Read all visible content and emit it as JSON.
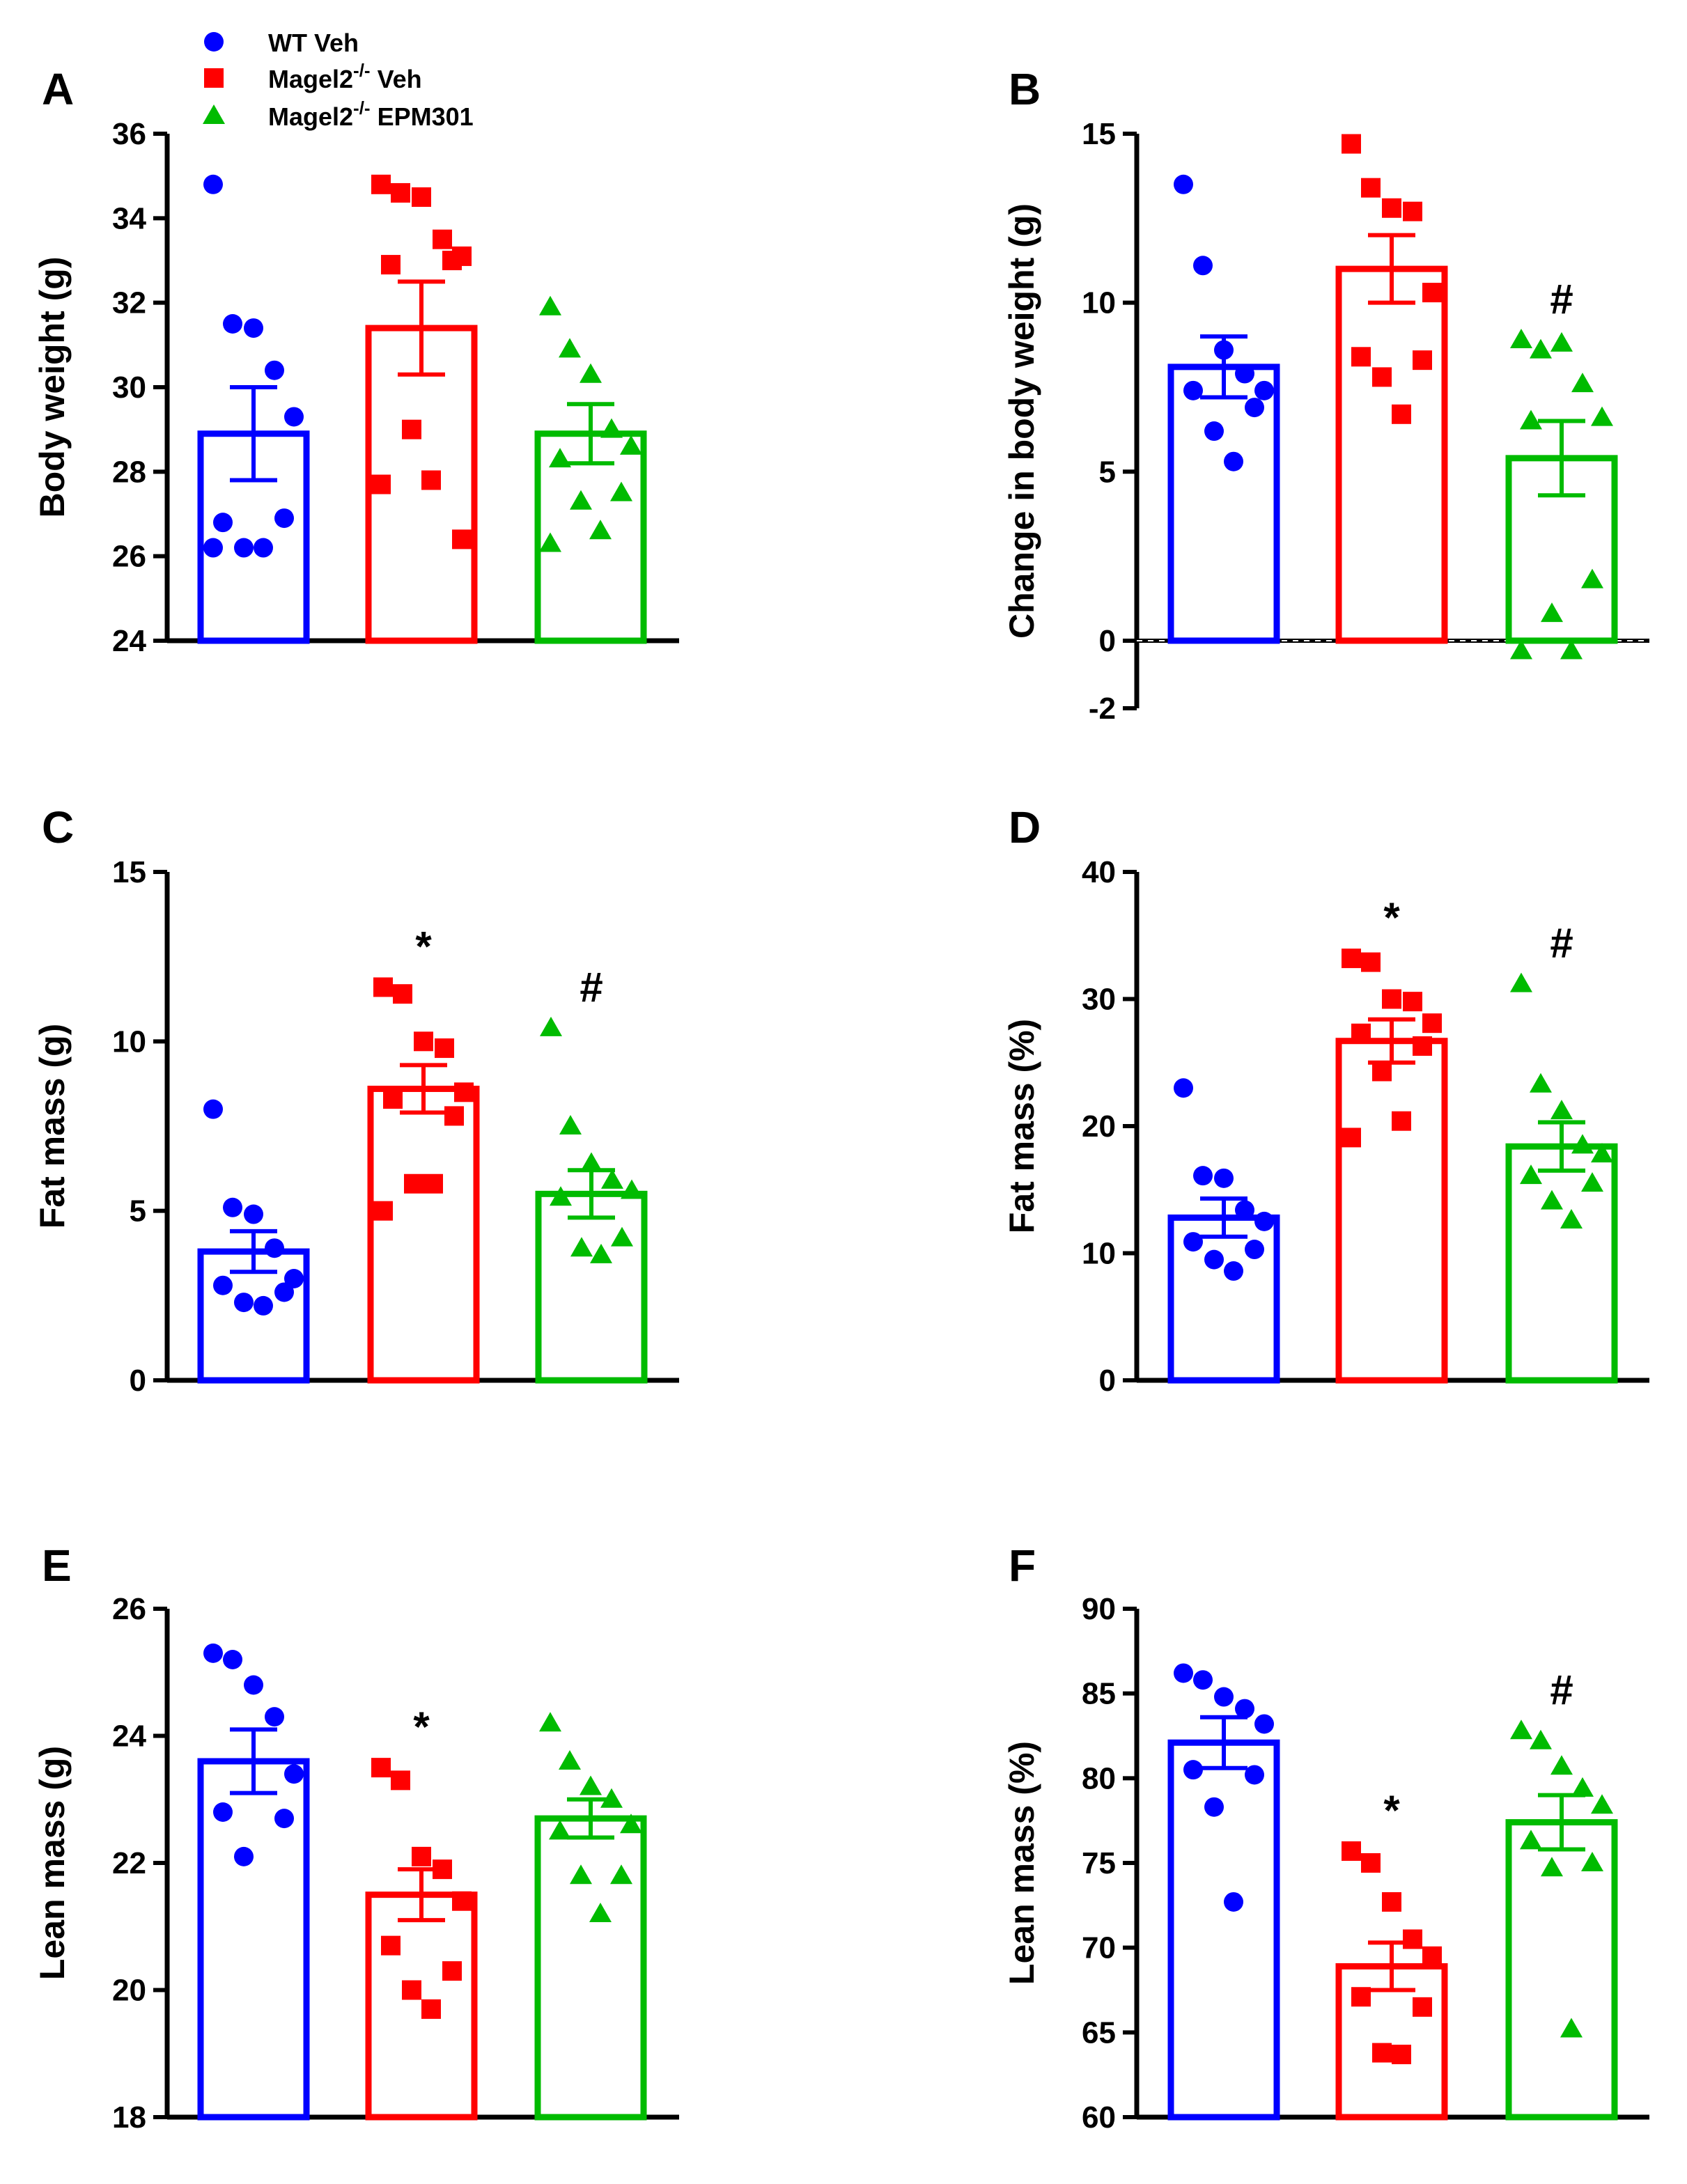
{
  "legend": {
    "items": [
      {
        "name": "wt-veh",
        "label": "WT Veh",
        "sup": "",
        "suffix": "",
        "shape": "circle",
        "color": "#0000ff"
      },
      {
        "name": "magel2-veh",
        "label": "Magel2",
        "sup": "-/-",
        "suffix": " Veh",
        "shape": "square",
        "color": "#ff0000"
      },
      {
        "name": "magel2-epm301",
        "label": "Magel2",
        "sup": "-/-",
        "suffix": " EPM301",
        "shape": "triangle",
        "color": "#00bb00"
      }
    ]
  },
  "chart_data": [
    {
      "panel": "A",
      "type": "bar",
      "ylabel": "Body weight (g)",
      "ylim": [
        24,
        36
      ],
      "yticks": [
        24,
        26,
        28,
        30,
        32,
        34,
        36
      ],
      "zero_line": false,
      "groups": [
        {
          "name": "WT Veh",
          "color": "#0000ff",
          "shape": "circle",
          "mean": 28.9,
          "sem": 1.1,
          "sig": "",
          "points": [
            34.8,
            31.5,
            31.4,
            30.4,
            29.3,
            26.8,
            26.9,
            26.2,
            26.2,
            26.2
          ]
        },
        {
          "name": "Magel2-/- Veh",
          "color": "#ff0000",
          "shape": "square",
          "mean": 31.4,
          "sem": 1.1,
          "sig": "",
          "points": [
            34.8,
            34.6,
            34.5,
            33.5,
            33.1,
            32.9,
            33.0,
            29.0,
            27.8,
            27.7,
            26.4
          ]
        },
        {
          "name": "Magel2-/- EPM301",
          "color": "#00bb00",
          "shape": "triangle",
          "mean": 28.9,
          "sem": 0.7,
          "sig": "",
          "points": [
            31.9,
            30.9,
            30.3,
            29.0,
            28.6,
            28.3,
            27.5,
            27.3,
            26.6,
            26.3
          ]
        }
      ]
    },
    {
      "panel": "B",
      "type": "bar",
      "ylabel": "Change in body weight (g)",
      "ylim": [
        -2,
        15
      ],
      "yticks": [
        -2,
        0,
        5,
        10,
        15
      ],
      "zero_line": true,
      "groups": [
        {
          "name": "WT Veh",
          "color": "#0000ff",
          "shape": "circle",
          "mean": 8.1,
          "sem": 0.9,
          "sig": "",
          "points": [
            13.5,
            11.1,
            8.6,
            7.9,
            7.4,
            7.4,
            6.9,
            6.2,
            5.3
          ]
        },
        {
          "name": "Magel2-/- Veh",
          "color": "#ff0000",
          "shape": "square",
          "mean": 11.0,
          "sem": 1.0,
          "sig": "",
          "points": [
            14.7,
            13.4,
            12.8,
            12.7,
            10.3,
            8.4,
            8.3,
            7.8,
            6.7
          ]
        },
        {
          "name": "Magel2-/- EPM301",
          "color": "#00bb00",
          "shape": "triangle",
          "mean": 5.4,
          "sem": 1.1,
          "sig": "#",
          "points": [
            8.9,
            8.6,
            8.8,
            7.6,
            6.6,
            6.5,
            1.8,
            0.8,
            -0.3,
            -0.3
          ]
        }
      ]
    },
    {
      "panel": "C",
      "type": "bar",
      "ylabel": "Fat mass (g)",
      "ylim": [
        0,
        15
      ],
      "yticks": [
        0,
        5,
        10,
        15
      ],
      "zero_line": false,
      "groups": [
        {
          "name": "WT Veh",
          "color": "#0000ff",
          "shape": "circle",
          "mean": 3.8,
          "sem": 0.6,
          "sig": "",
          "points": [
            8.0,
            5.1,
            4.9,
            3.9,
            3.0,
            2.8,
            2.6,
            2.3,
            2.2
          ]
        },
        {
          "name": "Magel2-/- Veh",
          "color": "#ff0000",
          "shape": "square",
          "mean": 8.6,
          "sem": 0.7,
          "sig": "*",
          "points": [
            11.6,
            11.4,
            10.0,
            9.8,
            8.5,
            8.3,
            7.8,
            5.8,
            5.8,
            5.0
          ]
        },
        {
          "name": "Magel2-/- EPM301",
          "color": "#00bb00",
          "shape": "triangle",
          "mean": 5.5,
          "sem": 0.7,
          "sig": "#",
          "points": [
            10.4,
            7.5,
            6.4,
            5.9,
            5.6,
            5.4,
            4.2,
            3.9,
            3.7
          ]
        }
      ]
    },
    {
      "panel": "D",
      "type": "bar",
      "ylabel": "Fat mass (%)",
      "ylim": [
        0,
        40
      ],
      "yticks": [
        0,
        10,
        20,
        30,
        40
      ],
      "zero_line": false,
      "groups": [
        {
          "name": "WT Veh",
          "color": "#0000ff",
          "shape": "circle",
          "mean": 12.8,
          "sem": 1.5,
          "sig": "",
          "points": [
            23.0,
            16.1,
            15.9,
            13.4,
            12.5,
            10.9,
            10.3,
            9.5,
            8.6
          ]
        },
        {
          "name": "Magel2-/- Veh",
          "color": "#ff0000",
          "shape": "square",
          "mean": 26.7,
          "sem": 1.7,
          "sig": "*",
          "points": [
            33.2,
            32.9,
            30.0,
            29.8,
            28.1,
            27.3,
            26.3,
            24.3,
            20.4,
            19.1
          ]
        },
        {
          "name": "Magel2-/- EPM301",
          "color": "#00bb00",
          "shape": "triangle",
          "mean": 18.4,
          "sem": 1.9,
          "sig": "#",
          "points": [
            31.2,
            23.3,
            21.2,
            18.5,
            17.8,
            16.1,
            15.5,
            14.1,
            12.6
          ]
        }
      ]
    },
    {
      "panel": "E",
      "type": "bar",
      "ylabel": "Lean mass (g)",
      "ylim": [
        18,
        26
      ],
      "yticks": [
        18,
        20,
        22,
        24,
        26
      ],
      "zero_line": false,
      "groups": [
        {
          "name": "WT Veh",
          "color": "#0000ff",
          "shape": "circle",
          "mean": 23.6,
          "sem": 0.5,
          "sig": "",
          "points": [
            25.3,
            25.2,
            24.8,
            24.3,
            23.4,
            22.8,
            22.7,
            22.1
          ]
        },
        {
          "name": "Magel2-/- Veh",
          "color": "#ff0000",
          "shape": "square",
          "mean": 21.5,
          "sem": 0.4,
          "sig": "*",
          "points": [
            23.5,
            23.3,
            22.1,
            21.9,
            21.4,
            20.7,
            20.3,
            20.0,
            19.7
          ]
        },
        {
          "name": "Magel2-/- EPM301",
          "color": "#00bb00",
          "shape": "triangle",
          "mean": 22.7,
          "sem": 0.3,
          "sig": "",
          "points": [
            24.2,
            23.6,
            23.2,
            23.0,
            22.6,
            22.5,
            21.8,
            21.8,
            21.2
          ]
        }
      ]
    },
    {
      "panel": "F",
      "type": "bar",
      "ylabel": "Lean mass (%)",
      "ylim": [
        60,
        90
      ],
      "yticks": [
        60,
        65,
        70,
        75,
        80,
        85,
        90
      ],
      "zero_line": false,
      "groups": [
        {
          "name": "WT Veh",
          "color": "#0000ff",
          "shape": "circle",
          "mean": 82.1,
          "sem": 1.5,
          "sig": "",
          "points": [
            86.2,
            85.8,
            84.8,
            84.1,
            83.2,
            80.5,
            80.2,
            78.3,
            72.7
          ]
        },
        {
          "name": "Magel2-/- Veh",
          "color": "#ff0000",
          "shape": "square",
          "mean": 68.9,
          "sem": 1.4,
          "sig": "*",
          "points": [
            75.7,
            75.0,
            72.7,
            70.5,
            69.5,
            67.1,
            66.5,
            63.8,
            63.7
          ]
        },
        {
          "name": "Magel2-/- EPM301",
          "color": "#00bb00",
          "shape": "triangle",
          "mean": 77.4,
          "sem": 1.6,
          "sig": "#",
          "points": [
            82.8,
            82.2,
            80.7,
            79.4,
            78.4,
            76.3,
            75.0,
            74.7,
            65.2
          ]
        }
      ]
    }
  ]
}
